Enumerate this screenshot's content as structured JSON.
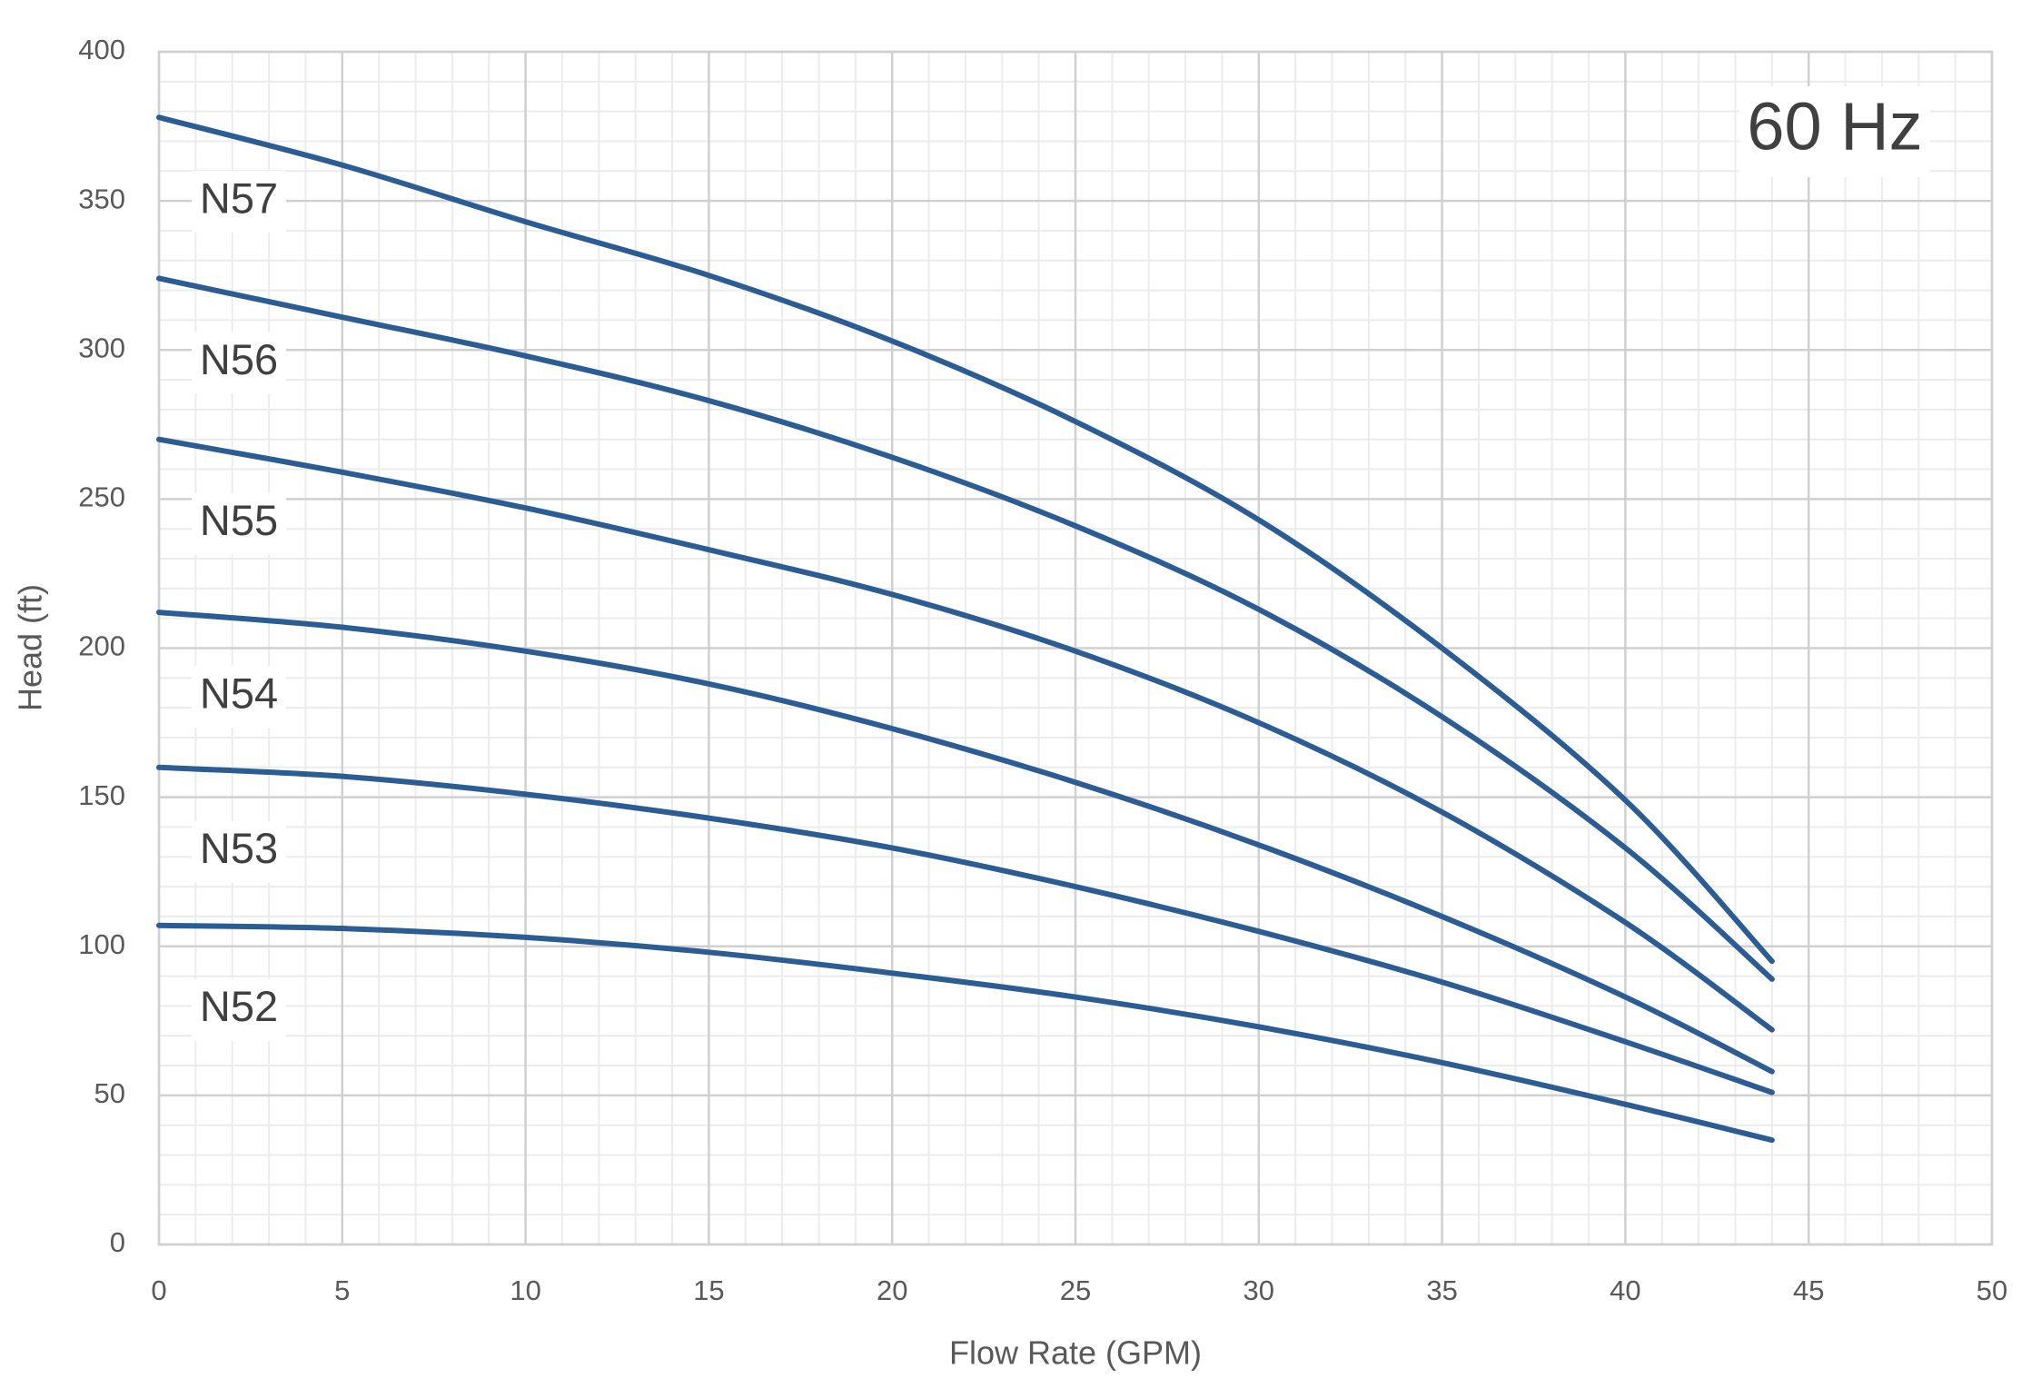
{
  "chart_data": {
    "type": "line",
    "annotation": "60 Hz",
    "xlabel": "Flow Rate (GPM)",
    "ylabel": "Head (ft)",
    "x": [
      0,
      5,
      10,
      15,
      20,
      25,
      30,
      35,
      40,
      44
    ],
    "series": [
      {
        "name": "N57",
        "color": "#2b5c94",
        "values": [
          378,
          362,
          343,
          325,
          303,
          276,
          243,
          200,
          149,
          95
        ]
      },
      {
        "name": "N56",
        "color": "#2b5c94",
        "values": [
          324,
          311,
          298,
          283,
          264,
          241,
          213,
          177,
          133,
          89
        ]
      },
      {
        "name": "N55",
        "color": "#2b5c94",
        "values": [
          270,
          259,
          247,
          233,
          218,
          199,
          175,
          145,
          108,
          72
        ]
      },
      {
        "name": "N54",
        "color": "#2b5c94",
        "values": [
          212,
          207,
          199,
          188,
          173,
          155,
          134,
          110,
          83,
          58
        ]
      },
      {
        "name": "N53",
        "color": "#2b5c94",
        "values": [
          160,
          157,
          151,
          143,
          133,
          120,
          105,
          88,
          68,
          51
        ]
      },
      {
        "name": "N52",
        "color": "#2b5c94",
        "values": [
          107,
          106,
          103,
          98,
          91,
          83,
          73,
          61,
          47,
          35
        ]
      }
    ],
    "xlim": [
      0,
      50
    ],
    "xticks": [
      0,
      5,
      10,
      15,
      20,
      25,
      30,
      35,
      40,
      45,
      50
    ],
    "ylim": [
      0,
      400
    ],
    "yticks": [
      0,
      50,
      100,
      150,
      200,
      250,
      300,
      350,
      400
    ],
    "grid": true,
    "minor_grid": true
  }
}
